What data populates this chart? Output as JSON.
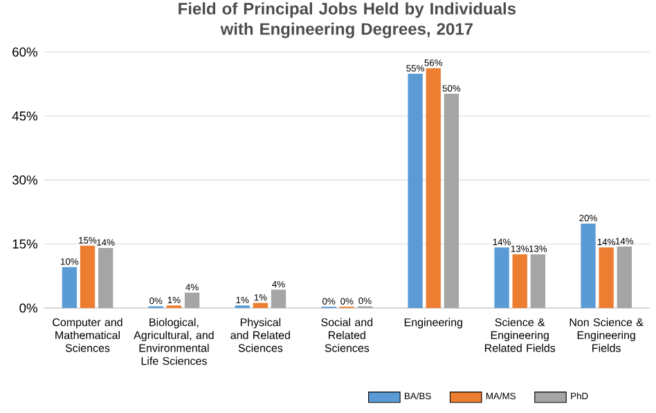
{
  "chart_data": {
    "type": "bar",
    "title": "Field of Principal Jobs Held by Individuals with Engineering Degrees, 2017",
    "categories": [
      "Computer and Mathematical Sciences",
      "Biological, Agricultural, and Environmental Life Sciences",
      "Physical and Related Sciences",
      "Social and Related Sciences",
      "Engineering",
      "Science & Engineering Related Fields",
      "Non Science & Engineering Fields"
    ],
    "series": [
      {
        "name": "BA/BS",
        "color": "#5b9bd5",
        "values": [
          9.6,
          0.4,
          0.6,
          0.3,
          54.9,
          14.2,
          19.8
        ],
        "value_labels": [
          "10%",
          "0%",
          "1%",
          "0%",
          "55%",
          "14%",
          "20%"
        ]
      },
      {
        "name": "MA/MS",
        "color": "#ed7d31",
        "values": [
          14.6,
          0.6,
          1.2,
          0.3,
          56.2,
          12.6,
          14.2
        ],
        "value_labels": [
          "15%",
          "1%",
          "1%",
          "0%",
          "56%",
          "13%",
          "14%"
        ]
      },
      {
        "name": "PhD",
        "color": "#a5a5a5",
        "values": [
          14.1,
          3.6,
          4.3,
          0.4,
          50.2,
          12.6,
          14.4
        ],
        "value_labels": [
          "14%",
          "4%",
          "4%",
          "0%",
          "50%",
          "13%",
          "14%"
        ]
      }
    ],
    "ylim": [
      0,
      60
    ],
    "yticks": [
      {
        "value": 0,
        "label": "0%"
      },
      {
        "value": 15,
        "label": "15%"
      },
      {
        "value": 30,
        "label": "30%"
      },
      {
        "value": 45,
        "label": "45%"
      },
      {
        "value": 60,
        "label": "60%"
      }
    ],
    "grid": "y",
    "legend": "bottom"
  }
}
